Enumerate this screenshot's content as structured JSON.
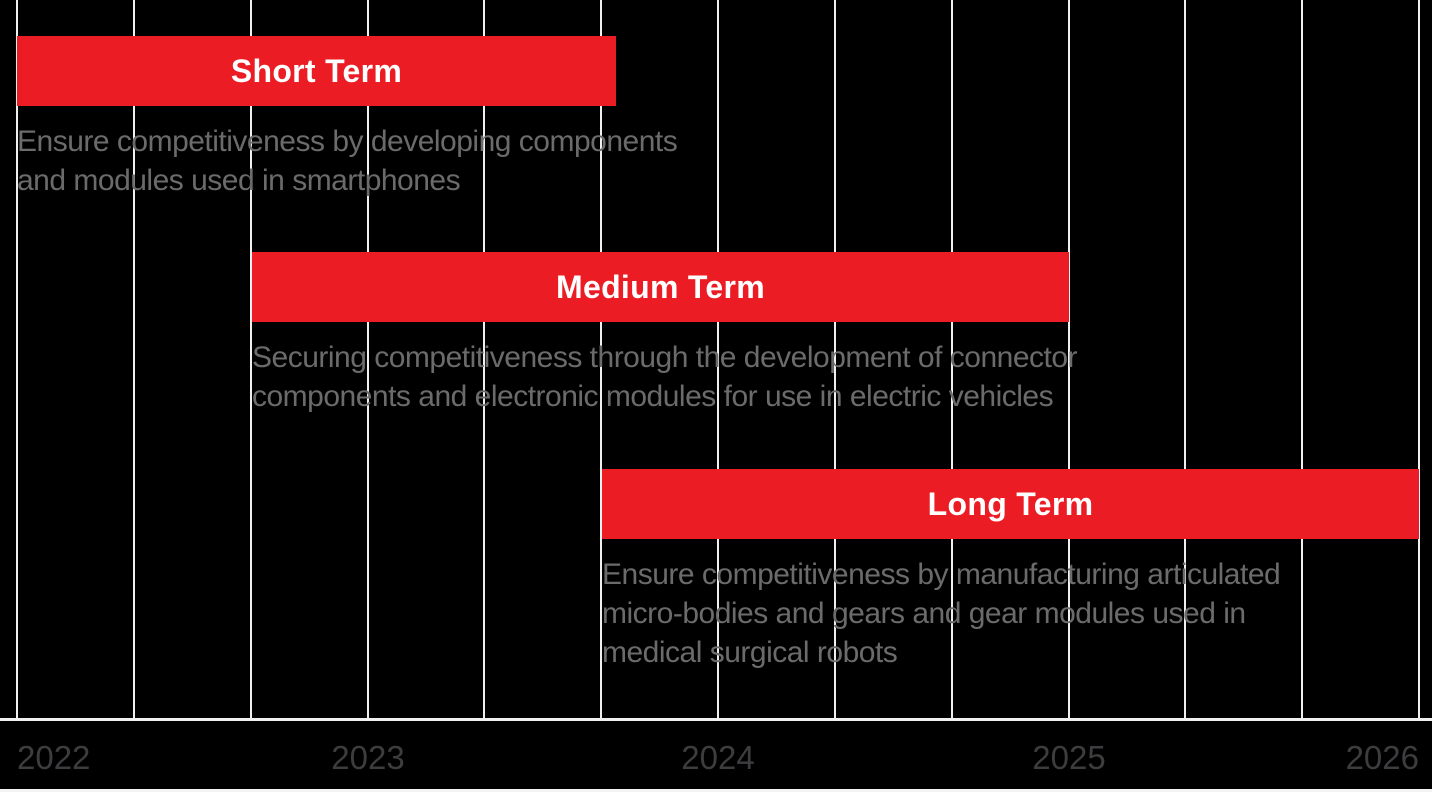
{
  "chart_data": {
    "type": "bar",
    "variant": "gantt-roadmap-timeline",
    "title": "",
    "background_color": "#000000",
    "bar_color": "#eb1c23",
    "bar_label_color": "#ffffff",
    "description_text_color": "#6b6b6b",
    "axis_tick_label_color": "#3d3d3f",
    "gridline_color": "#f0f0f0",
    "grid": "on",
    "legend": "none",
    "x_axis": {
      "position": "bottom",
      "tick_labels": [
        "2022",
        "2023",
        "2024",
        "2025",
        "2026"
      ],
      "start_year": 2022,
      "end_year": 2026,
      "gridlines_per_year": 3
    },
    "series": [
      {
        "name": "Short Term",
        "start": 2022.0,
        "end": 2023.71,
        "description_lines": [
          "Ensure competitiveness by developing components",
          "and modules used in smartphones"
        ]
      },
      {
        "name": "Medium Term",
        "start": 2022.67,
        "end": 2025.0,
        "description_lines": [
          "Securing competitiveness through the development of connector",
          "components and electronic modules for use in electric vehicles"
        ]
      },
      {
        "name": "Long Term",
        "start": 2023.67,
        "end": 2026.0,
        "description_lines": [
          "Ensure competitiveness by manufacturing articulated",
          "micro-bodies and gears and gear modules used in",
          "medical surgical robots"
        ]
      }
    ]
  }
}
